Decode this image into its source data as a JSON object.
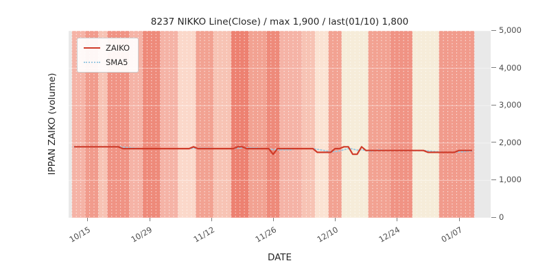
{
  "title": "8237 NIKKO Line(Close) / max 1,900 / last(01/10) 1,800",
  "xlabel": "DATE",
  "ylabel": "IPPAN ZAIKO (volume)",
  "legend": [
    {
      "label": "ZAIKO",
      "color": "#cf3a28",
      "style": "solid"
    },
    {
      "label": "SMA5",
      "color": "#9ecae1",
      "style": "dotted"
    }
  ],
  "chart_data": {
    "type": "line",
    "title": "8237 NIKKO Line(Close) / max 1,900 / last(01/10) 1,800",
    "xlabel": "DATE",
    "ylabel": "IPPAN ZAIKO (volume)",
    "ylim": [
      0,
      5000
    ],
    "yticks": [
      0,
      1000,
      2000,
      3000,
      4000,
      5000
    ],
    "grid": true,
    "legend_position": "upper left",
    "n_points": 91,
    "start_date": "10/12",
    "end_date": "01/10",
    "max_value": 1900,
    "last_value": 1800,
    "xticks": [
      {
        "label": "10/15",
        "index": 3
      },
      {
        "label": "10/29",
        "index": 17
      },
      {
        "label": "11/12",
        "index": 31
      },
      {
        "label": "11/26",
        "index": 45
      },
      {
        "label": "12/10",
        "index": 59
      },
      {
        "label": "12/24",
        "index": 73
      },
      {
        "label": "01/07",
        "index": 87
      }
    ],
    "series": [
      {
        "name": "ZAIKO",
        "color": "#cf3a28",
        "style": "solid",
        "values": [
          1900,
          1900,
          1900,
          1900,
          1900,
          1900,
          1900,
          1900,
          1900,
          1900,
          1900,
          1850,
          1850,
          1850,
          1850,
          1850,
          1850,
          1850,
          1850,
          1850,
          1850,
          1850,
          1850,
          1850,
          1850,
          1850,
          1850,
          1900,
          1850,
          1850,
          1850,
          1850,
          1850,
          1850,
          1850,
          1850,
          1850,
          1900,
          1900,
          1850,
          1850,
          1850,
          1850,
          1850,
          1850,
          1700,
          1850,
          1850,
          1850,
          1850,
          1850,
          1850,
          1850,
          1850,
          1850,
          1750,
          1750,
          1750,
          1750,
          1850,
          1850,
          1900,
          1900,
          1700,
          1700,
          1900,
          1800,
          1800,
          1800,
          1800,
          1800,
          1800,
          1800,
          1800,
          1800,
          1800,
          1800,
          1800,
          1800,
          1800,
          1750,
          1750,
          1750,
          1750,
          1750,
          1750,
          1750,
          1800,
          1800,
          1800,
          1800
        ]
      },
      {
        "name": "SMA5",
        "color": "#9ecae1",
        "style": "dotted",
        "derived": "moving_average_of_ZAIKO",
        "window": 5
      }
    ],
    "background_bands": [
      {
        "from": 0,
        "to": 2,
        "color": "#f5b3a6"
      },
      {
        "from": 3,
        "to": 5,
        "color": "#f19b8c"
      },
      {
        "from": 6,
        "to": 7,
        "color": "#f7c3b4"
      },
      {
        "from": 8,
        "to": 12,
        "color": "#f09384"
      },
      {
        "from": 13,
        "to": 15,
        "color": "#f5b3a6"
      },
      {
        "from": 16,
        "to": 19,
        "color": "#ee8a7a"
      },
      {
        "from": 20,
        "to": 23,
        "color": "#f5b3a6"
      },
      {
        "from": 24,
        "to": 27,
        "color": "#fbd8ca"
      },
      {
        "from": 28,
        "to": 31,
        "color": "#f2a292"
      },
      {
        "from": 32,
        "to": 35,
        "color": "#f7c3b4"
      },
      {
        "from": 36,
        "to": 39,
        "color": "#ed8171"
      },
      {
        "from": 40,
        "to": 43,
        "color": "#f2a292"
      },
      {
        "from": 44,
        "to": 46,
        "color": "#ee8a7a"
      },
      {
        "from": 47,
        "to": 51,
        "color": "#f5b3a6"
      },
      {
        "from": 52,
        "to": 54,
        "color": "#f7c3b4"
      },
      {
        "from": 55,
        "to": 57,
        "color": "#fbe3d3"
      },
      {
        "from": 58,
        "to": 60,
        "color": "#f2a292"
      },
      {
        "from": 61,
        "to": 66,
        "color": "#f6ecd9"
      },
      {
        "from": 67,
        "to": 71,
        "color": "#f2a292"
      },
      {
        "from": 72,
        "to": 76,
        "color": "#f09384"
      },
      {
        "from": 77,
        "to": 82,
        "color": "#f6ecd9"
      },
      {
        "from": 83,
        "to": 90,
        "color": "#f19b8c"
      }
    ]
  }
}
